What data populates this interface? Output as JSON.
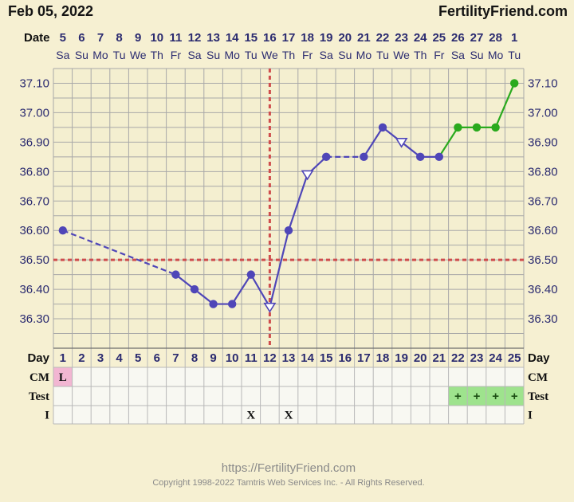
{
  "header": {
    "date": "Feb 05, 2022",
    "site": "FertilityFriend.com",
    "date_row_label": "Date"
  },
  "footer": {
    "url": "https://FertilityFriend.com",
    "copyright": "Copyright 1998-2022 Tamtris Web Services Inc. - All Rights Reserved."
  },
  "chart_data": {
    "type": "line",
    "title": "",
    "xlabel": "",
    "ylabel": "",
    "dates": [
      "5",
      "6",
      "7",
      "8",
      "9",
      "10",
      "11",
      "12",
      "13",
      "14",
      "15",
      "16",
      "17",
      "18",
      "19",
      "20",
      "21",
      "22",
      "23",
      "24",
      "25",
      "26",
      "27",
      "28",
      "1"
    ],
    "weekdays": [
      "Sa",
      "Su",
      "Mo",
      "Tu",
      "We",
      "Th",
      "Fr",
      "Sa",
      "Su",
      "Mo",
      "Tu",
      "We",
      "Th",
      "Fr",
      "Sa",
      "Su",
      "Mo",
      "Tu",
      "We",
      "Th",
      "Fr",
      "Sa",
      "Su",
      "Mo",
      "Tu"
    ],
    "cycle_days": [
      "1",
      "2",
      "3",
      "4",
      "5",
      "6",
      "7",
      "8",
      "9",
      "10",
      "11",
      "12",
      "13",
      "14",
      "15",
      "16",
      "17",
      "18",
      "19",
      "20",
      "21",
      "22",
      "23",
      "24",
      "25"
    ],
    "y_ticks": [
      "37.10",
      "37.00",
      "36.90",
      "36.80",
      "36.70",
      "36.60",
      "36.50",
      "36.40",
      "36.30"
    ],
    "ylim": [
      36.2,
      37.15
    ],
    "temperatures": [
      36.6,
      null,
      null,
      null,
      null,
      null,
      36.45,
      36.4,
      36.35,
      36.35,
      36.45,
      36.34,
      36.6,
      36.79,
      36.85,
      null,
      36.85,
      36.95,
      36.9,
      36.85,
      36.85,
      36.95,
      36.95,
      36.95,
      37.1
    ],
    "open_markers": [
      11,
      13,
      18
    ],
    "green_from_index": 20,
    "coverline": 36.5,
    "ovulation_day_index": 11,
    "rows": {
      "day_label": "Day",
      "cm_label": "CM",
      "test_label": "Test",
      "i_label": "I",
      "cm": [
        "L",
        "",
        "",
        "",
        "",
        "",
        "",
        "",
        "",
        "",
        "",
        "",
        "",
        "",
        "",
        "",
        "",
        "",
        "",
        "",
        "",
        "",
        "",
        "",
        ""
      ],
      "test": [
        "",
        "",
        "",
        "",
        "",
        "",
        "",
        "",
        "",
        "",
        "",
        "",
        "",
        "",
        "",
        "",
        "",
        "",
        "",
        "",
        "",
        "+",
        "+",
        "+",
        "+"
      ],
      "intercourse": [
        "",
        "",
        "",
        "",
        "",
        "",
        "",
        "",
        "",
        "",
        "X",
        "",
        "X",
        "",
        "",
        "",
        "",
        "",
        "",
        "",
        "",
        "",
        "",
        "",
        ""
      ]
    },
    "colors": {
      "line": "#4f46b8",
      "post_line": "#2aaa1e",
      "coverline": "#cf4d4d",
      "cm_fill": "#f2b6d2",
      "test_fill": "#9ee38d",
      "plot_bg": "#f4efd0",
      "grid": "#a8a8a8"
    }
  }
}
